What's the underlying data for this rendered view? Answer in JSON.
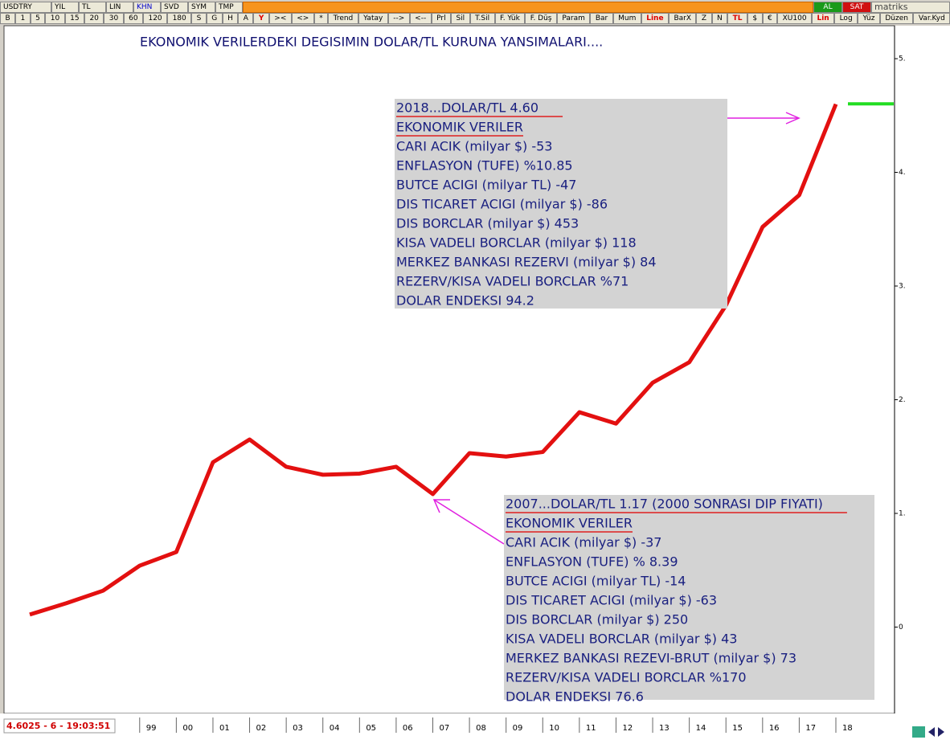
{
  "toolbar": {
    "row1": [
      "USDTRY",
      "YIL",
      "TL",
      "LIN",
      "KHN",
      "SVD",
      "SYM",
      "TMP"
    ],
    "buy": "AL",
    "sell": "SAT",
    "brand": "matriks",
    "row2": [
      "B",
      "1",
      "5",
      "10",
      "15",
      "20",
      "30",
      "60",
      "120",
      "180",
      "S",
      "G",
      "H",
      "A",
      "Y",
      "><",
      "<>",
      "*",
      "Trend",
      "Yatay",
      "-->",
      "<--",
      "Prl",
      "Sil",
      "T.Sil",
      "F. Yük",
      "F. Düş",
      "Param",
      "Bar",
      "Mum",
      "Line",
      "BarX",
      "Z",
      "N",
      "TL",
      "$",
      "€",
      "XU100",
      "Lin",
      "Log",
      "Yüz",
      "Düzen",
      "Var.Kyd"
    ]
  },
  "status": "4.6025 - 6 - 19:03:51",
  "chart_data": {
    "type": "line",
    "title": "EKONOMIK VERILERDEKI DEGISIMIN DOLAR/TL KURUNA YANSIMALARI....",
    "categories": [
      null,
      null,
      null,
      "99",
      "00",
      "01",
      "02",
      "03",
      "04",
      "05",
      "06",
      "07",
      "08",
      "09",
      "10",
      "11",
      "12",
      "13",
      "14",
      "15",
      "16",
      "17",
      "18"
    ],
    "values": [
      0.11,
      0.21,
      0.32,
      0.54,
      0.66,
      1.45,
      1.65,
      1.41,
      1.34,
      1.35,
      1.41,
      1.17,
      1.53,
      1.5,
      1.54,
      1.89,
      1.79,
      2.15,
      2.33,
      2.83,
      3.52,
      3.8,
      4.6
    ],
    "color": "#e31010",
    "current_value": 4.6025,
    "current_color": "#22dd22",
    "ylim": [
      -0.76,
      5.29
    ],
    "yticks": [
      0,
      {
        "value": 1,
        "label": "1."
      },
      {
        "value": 2,
        "label": "2."
      },
      {
        "value": 3,
        "label": "3."
      },
      {
        "value": 4,
        "label": "4."
      },
      {
        "value": 5,
        "label": "5."
      }
    ],
    "annotations": [
      {
        "lines": [
          "2018...DOLAR/TL 4.60",
          "EKONOMIK VERILER",
          "CARI ACIK  (milyar $) -53",
          "ENFLASYON (TUFE) %10.85",
          "BUTCE ACIGI (milyar TL) -47",
          "DIS TICARET ACIGI (milyar $)  -86",
          "DIS BORCLAR (milyar $)  453",
          "KISA VADELI BORCLAR (milyar $) 118",
          "MERKEZ BANKASI REZERVI (milyar $)  84",
          "REZERV/KISA VADELI BORCLAR  %71",
          "DOLAR ENDEKSI  94.2"
        ]
      },
      {
        "lines": [
          "2007...DOLAR/TL 1.17 (2000 SONRASI DIP FIYATI)",
          "EKONOMIK VERILER",
          "CARI ACIK (milyar $) -37",
          "ENFLASYON (TUFE) % 8.39",
          "BUTCE ACIGI (milyar TL) -14",
          "DIS TICARET ACIGI (milyar $) -63",
          "DIS BORCLAR (milyar $) 250",
          "KISA VADELI BORCLAR (milyar $) 43",
          "MERKEZ BANKASI REZEVI-BRUT (milyar $) 73",
          "REZERV/KISA VADELI BORCLAR  %170",
          "DOLAR ENDEKSI 76.6"
        ]
      }
    ]
  }
}
